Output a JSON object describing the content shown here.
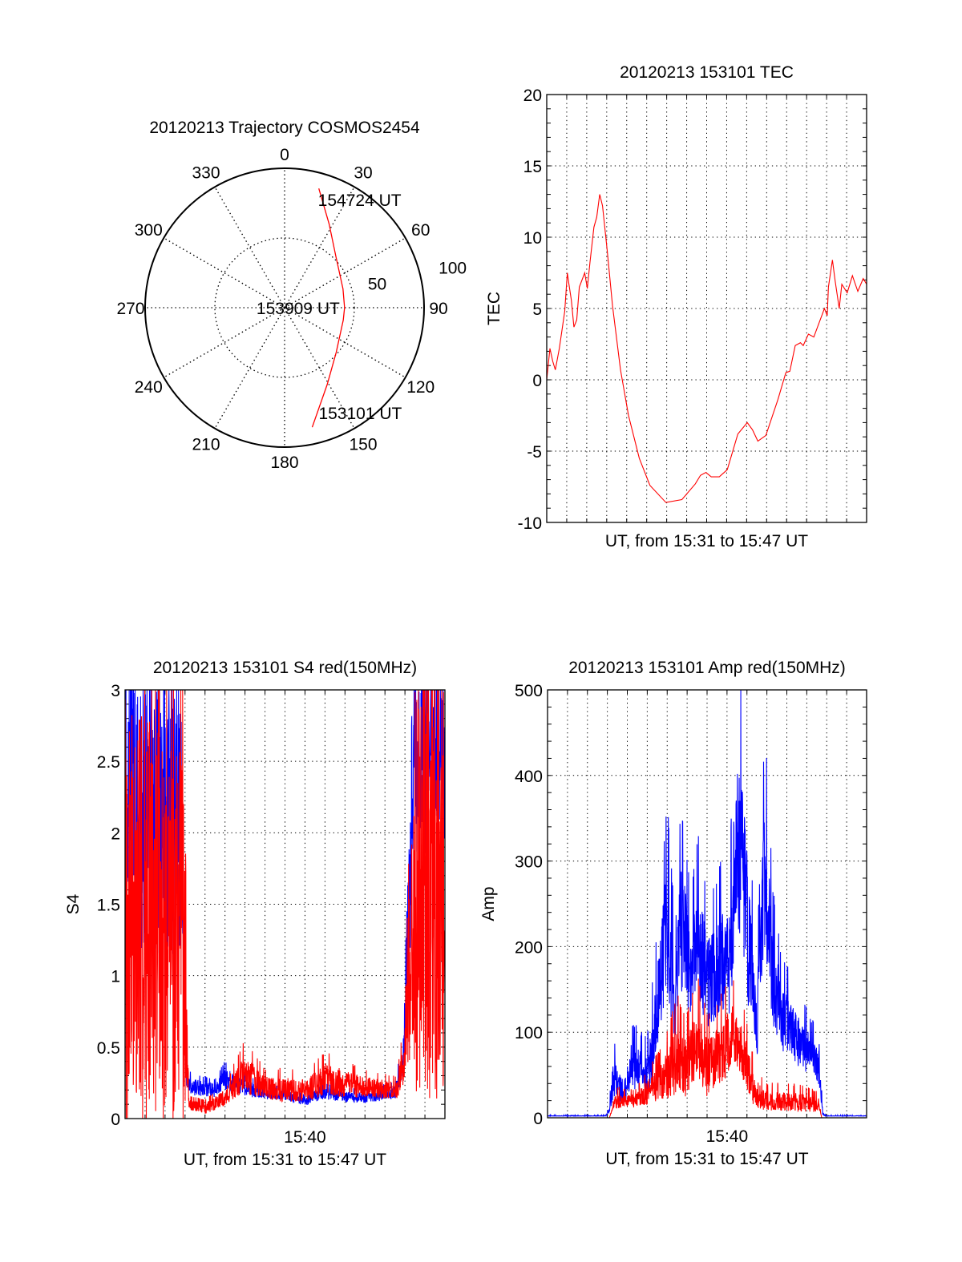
{
  "colors": {
    "red": "#ff0000",
    "blue": "#0000ff",
    "axis": "#000000"
  },
  "chart_data": [
    {
      "type": "polar",
      "title": "20120213 Trajectory COSMOS2454",
      "angle_labels": [
        "0",
        "30",
        "60",
        "90",
        "120",
        "150",
        "180",
        "210",
        "240",
        "270",
        "300",
        "330"
      ],
      "ring_values": [
        50,
        100
      ],
      "ring_labels": [
        "50",
        "100"
      ],
      "rmax": 100,
      "trajectory": {
        "color": "#ff0000",
        "azimuth_deg": [
          167,
          151,
          131,
          102,
          90,
          72,
          45,
          28,
          16
        ],
        "radius": [
          88,
          63,
          49,
          43,
          43,
          44,
          52,
          68,
          89
        ]
      },
      "time_labels": [
        {
          "text": "153101 UT",
          "point_index": 0
        },
        {
          "text": "153909 UT",
          "point_index": 4
        },
        {
          "text": "154724 UT",
          "point_index": 8
        }
      ]
    },
    {
      "type": "line",
      "id": "tec",
      "title": "20120213 153101 TEC",
      "xlabel": "UT, from 15:31 to 15:47 UT",
      "ylabel": "TEC",
      "x_units": "minutes since 15:31",
      "xlim": [
        0,
        16
      ],
      "ylim": [
        -10,
        20
      ],
      "yticks": [
        -10,
        -5,
        0,
        5,
        10,
        15,
        20
      ],
      "ytick_labels": [
        "-10",
        "-5",
        "0",
        "5",
        "10",
        "15",
        "20"
      ],
      "yminor": 1,
      "xticks": [],
      "xtick_labels": [],
      "grid": true,
      "series": [
        {
          "name": "TEC",
          "color": "#ff0000",
          "x": [
            0,
            0.16,
            0.3,
            0.43,
            0.63,
            0.9,
            1.03,
            1.1,
            1.23,
            1.36,
            1.5,
            1.63,
            1.9,
            2.03,
            2.16,
            2.36,
            2.5,
            2.65,
            2.79,
            3.03,
            3.29,
            3.69,
            4.09,
            4.63,
            5.16,
            5.96,
            6.76,
            7.43,
            7.69,
            7.96,
            8.23,
            8.63,
            9.03,
            9.56,
            10.03,
            10.29,
            10.56,
            10.96,
            11.56,
            11.96,
            12.16,
            12.43,
            12.69,
            12.83,
            13.09,
            13.36,
            13.89,
            14.03,
            14.09,
            14.29,
            14.43,
            14.63,
            14.76,
            15.03,
            15.29,
            15.56,
            15.83,
            16.0
          ],
          "y": [
            0,
            2.2,
            1.3,
            0.7,
            2.2,
            4.8,
            7.5,
            6.8,
            5.6,
            3.7,
            4.2,
            6.5,
            7.5,
            6.4,
            8.2,
            10.7,
            11.4,
            13.0,
            12.2,
            9.0,
            5.2,
            0.7,
            -2.5,
            -5.5,
            -7.4,
            -8.6,
            -8.4,
            -7.3,
            -6.7,
            -6.5,
            -6.8,
            -6.8,
            -6.3,
            -3.8,
            -3.0,
            -3.5,
            -4.3,
            -3.9,
            -1.4,
            0.5,
            0.6,
            2.4,
            2.6,
            2.4,
            3.2,
            3.0,
            5.0,
            4.5,
            6.5,
            8.4,
            6.9,
            5.0,
            6.7,
            6.1,
            7.3,
            6.2,
            7.1,
            6.7
          ]
        }
      ]
    },
    {
      "type": "line",
      "id": "s4",
      "title": "20120213 153101 S4 red(150MHz)",
      "xlabel": "UT, from 15:31 to 15:47 UT",
      "ylabel": "S4",
      "x_units": "minutes since 15:31",
      "xlim": [
        0,
        16
      ],
      "ylim": [
        0,
        3
      ],
      "yticks": [
        0,
        0.5,
        1,
        1.5,
        2,
        2.5,
        3
      ],
      "ytick_labels": [
        "0",
        "0.5",
        "1",
        "1.5",
        "2",
        "2.5",
        "3"
      ],
      "yminor": 0.1,
      "xticks": [
        9
      ],
      "xtick_labels": [
        "15:40"
      ],
      "grid": true,
      "series": [
        {
          "name": "blue",
          "color": "#0000ff",
          "x": [
            0,
            2.8,
            3.0,
            3.1,
            3.5,
            4.5,
            5.0,
            6.0,
            7.0,
            8.0,
            9.0,
            10.0,
            11.0,
            12.0,
            13.5,
            13.9,
            14.2,
            14.4,
            16
          ],
          "y": [
            2.2,
            2.1,
            0.5,
            0.25,
            0.22,
            0.2,
            0.28,
            0.22,
            0.17,
            0.17,
            0.12,
            0.2,
            0.15,
            0.15,
            0.18,
            0.4,
            1.5,
            2.5,
            2.6
          ],
          "noise": [
            1.0,
            1.0,
            0.2,
            0.06,
            0.06,
            0.05,
            0.08,
            0.06,
            0.04,
            0.04,
            0.03,
            0.06,
            0.04,
            0.04,
            0.05,
            0.1,
            0.6,
            0.7,
            0.7
          ]
        },
        {
          "name": "red",
          "color": "#ff0000",
          "x": [
            0,
            2.9,
            3.1,
            3.2,
            4.0,
            5.0,
            6.0,
            7.0,
            8.0,
            9.0,
            10.0,
            11.0,
            12.0,
            13.6,
            14.0,
            14.3,
            14.5,
            16
          ],
          "y": [
            1.5,
            1.3,
            0.5,
            0.1,
            0.07,
            0.15,
            0.32,
            0.22,
            0.2,
            0.2,
            0.28,
            0.25,
            0.22,
            0.2,
            0.45,
            1.2,
            1.7,
            1.7
          ],
          "noise": [
            1.6,
            1.4,
            0.3,
            0.04,
            0.04,
            0.06,
            0.15,
            0.08,
            0.1,
            0.08,
            0.12,
            0.1,
            0.08,
            0.06,
            0.2,
            0.8,
            1.6,
            1.6
          ]
        }
      ]
    },
    {
      "type": "line",
      "id": "amp",
      "title": "20120213 153101 Amp red(150MHz)",
      "xlabel": "UT, from 15:31 to 15:47 UT",
      "ylabel": "Amp",
      "x_units": "minutes since 15:31",
      "xlim": [
        0,
        16
      ],
      "ylim": [
        0,
        500
      ],
      "yticks": [
        0,
        100,
        200,
        300,
        400,
        500
      ],
      "ytick_labels": [
        "0",
        "100",
        "200",
        "300",
        "400",
        "500"
      ],
      "yminor": 20,
      "xticks": [
        9
      ],
      "xtick_labels": [
        "15:40"
      ],
      "grid": true,
      "series": [
        {
          "name": "blue",
          "color": "#0000ff",
          "x": [
            0,
            2.9,
            3.1,
            3.3,
            3.8,
            4.2,
            5.0,
            5.3,
            5.6,
            6.0,
            6.4,
            6.7,
            7.2,
            7.6,
            8.0,
            8.4,
            8.8,
            9.1,
            9.5,
            9.8,
            10.1,
            10.5,
            10.9,
            11.3,
            11.7,
            12.3,
            13.0,
            13.6,
            13.8,
            14.0,
            16
          ],
          "y": [
            2,
            2,
            8,
            50,
            30,
            60,
            50,
            90,
            150,
            230,
            130,
            230,
            170,
            210,
            160,
            170,
            190,
            180,
            330,
            300,
            200,
            110,
            290,
            170,
            120,
            100,
            80,
            60,
            5,
            2,
            2
          ],
          "noise": [
            0.3,
            0.3,
            0.5,
            0.5,
            0.5,
            0.5,
            0.5,
            0.5,
            0.4,
            0.35,
            0.4,
            0.35,
            0.35,
            0.35,
            0.35,
            0.35,
            0.35,
            0.35,
            0.35,
            0.35,
            0.4,
            0.4,
            0.35,
            0.35,
            0.35,
            0.35,
            0.35,
            0.35,
            0.4,
            0.3,
            0.3
          ]
        },
        {
          "name": "red",
          "color": "#ff0000",
          "x": [
            0,
            3.1,
            3.4,
            3.8,
            4.4,
            5.0,
            5.5,
            6.0,
            6.5,
            7.0,
            7.5,
            8.0,
            8.4,
            8.8,
            9.2,
            9.6,
            10.0,
            10.4,
            11.0,
            12.0,
            13.0,
            13.6,
            13.75,
            16
          ],
          "y": [
            0,
            0,
            20,
            20,
            20,
            30,
            40,
            50,
            70,
            60,
            90,
            60,
            70,
            80,
            100,
            90,
            60,
            30,
            20,
            20,
            18,
            15,
            0,
            0
          ],
          "noise": [
            0,
            0,
            0.5,
            0.4,
            0.4,
            0.5,
            0.5,
            0.6,
            0.6,
            0.6,
            0.5,
            0.6,
            0.5,
            0.5,
            0.4,
            0.4,
            0.5,
            0.6,
            0.6,
            0.6,
            0.6,
            0.6,
            0,
            0
          ]
        }
      ]
    }
  ]
}
